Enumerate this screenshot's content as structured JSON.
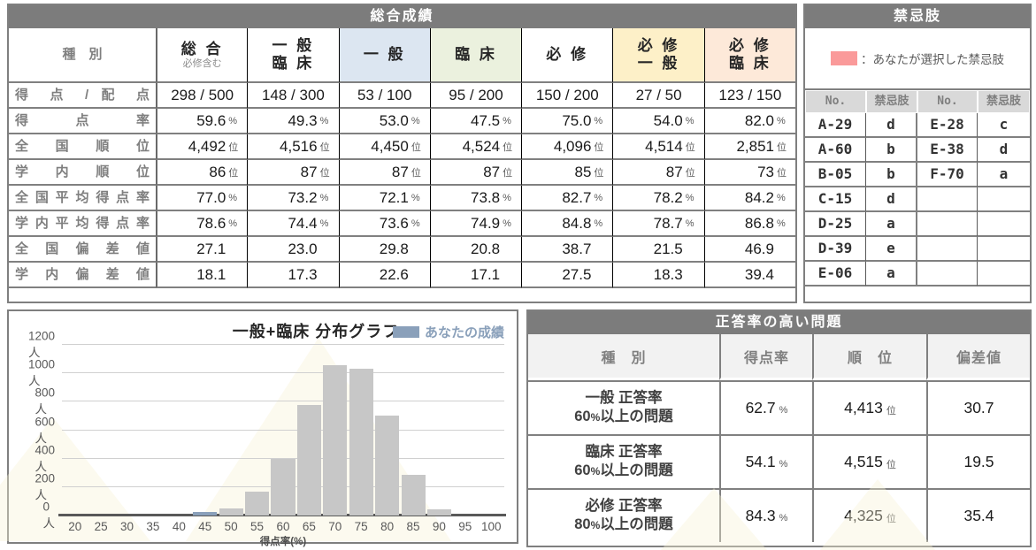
{
  "main_table": {
    "title": "総合成績",
    "corner_label": "種　別",
    "columns": [
      {
        "line1": "総 合",
        "sub": "必修含む",
        "bg": "#ffffff"
      },
      {
        "line1": "一 般",
        "line2": "臨 床",
        "bg": "#ffffff"
      },
      {
        "line1": "一 般",
        "bg": "#dce6f1"
      },
      {
        "line1": "臨 床",
        "bg": "#ebf1de"
      },
      {
        "line1": "必 修",
        "bg": "#ffffff"
      },
      {
        "line1": "必 修",
        "line2": "一 般",
        "bg": "#fdf0c8"
      },
      {
        "line1": "必 修",
        "line2": "臨 床",
        "bg": "#fde9d9"
      }
    ],
    "rows": [
      {
        "label": "得 点 / 配 点",
        "unit": "",
        "align": "center",
        "values": [
          "298 / 500",
          "148 / 300",
          "53 / 100",
          "95 / 200",
          "150 / 200",
          "27 / 50",
          "123 / 150"
        ]
      },
      {
        "label": "得 点 率",
        "unit": "%",
        "values": [
          "59.6",
          "49.3",
          "53.0",
          "47.5",
          "75.0",
          "54.0",
          "82.0"
        ]
      },
      {
        "label": "全 国 順 位",
        "unit": "位",
        "values": [
          "4,492",
          "4,516",
          "4,450",
          "4,524",
          "4,096",
          "4,514",
          "2,851"
        ]
      },
      {
        "label": "学 内 順 位",
        "unit": "位",
        "values": [
          "86",
          "87",
          "87",
          "87",
          "85",
          "87",
          "73"
        ]
      },
      {
        "label": "全国平均得点率",
        "unit": "%",
        "values": [
          "77.0",
          "73.2",
          "72.1",
          "73.8",
          "82.7",
          "78.2",
          "84.2"
        ]
      },
      {
        "label": "学内平均得点率",
        "unit": "%",
        "values": [
          "78.6",
          "74.4",
          "73.6",
          "74.9",
          "84.8",
          "78.7",
          "86.8"
        ]
      },
      {
        "label": "全 国 偏 差 値",
        "unit": "",
        "values": [
          "27.1",
          "23.0",
          "29.8",
          "20.8",
          "38.7",
          "21.5",
          "46.9"
        ]
      },
      {
        "label": "学 内 偏 差 値",
        "unit": "",
        "values": [
          "18.1",
          "17.3",
          "22.6",
          "17.1",
          "27.5",
          "18.3",
          "39.4"
        ]
      }
    ]
  },
  "kinshi_panel": {
    "title": "禁忌肢",
    "legend_label": "：あなたが選択した禁忌肢",
    "legend_color": "#fa9a9a",
    "col_headers": [
      "No.",
      "禁忌肢",
      "No.",
      "禁忌肢"
    ],
    "rows": [
      [
        "A-29",
        "d",
        "E-28",
        "c"
      ],
      [
        "A-60",
        "b",
        "E-38",
        "d"
      ],
      [
        "B-05",
        "b",
        "F-70",
        "a"
      ],
      [
        "C-15",
        "d",
        "",
        ""
      ],
      [
        "D-25",
        "a",
        "",
        ""
      ],
      [
        "D-39",
        "e",
        "",
        ""
      ],
      [
        "E-06",
        "a",
        "",
        ""
      ]
    ]
  },
  "chart_data": {
    "type": "bar",
    "title": "一般+臨床 分布グラフ",
    "legend_label": "あなたの成績",
    "legend_position": "top-right",
    "xlabel": "得点率(%)",
    "categories": [
      20,
      25,
      30,
      35,
      40,
      45,
      50,
      55,
      60,
      65,
      70,
      75,
      80,
      85,
      90,
      95,
      100
    ],
    "values": [
      0,
      0,
      0,
      0,
      0,
      25,
      50,
      170,
      400,
      780,
      1060,
      1030,
      705,
      285,
      45,
      0,
      0
    ],
    "highlight": {
      "x": 45,
      "value": 25,
      "meaning": "あなたの成績"
    },
    "ylim": [
      0,
      1200
    ],
    "ytick_step": 200,
    "ytick_suffix": "人",
    "grid": true,
    "bar_color": "#c7c7c7",
    "highlight_color": "#8aa0ba"
  },
  "seitou_table": {
    "title": "正答率の高い問題",
    "col_headers": [
      "種　別",
      "得点率",
      "順　位",
      "偏差値"
    ],
    "rows": [
      {
        "label_line1": "一般 正答率",
        "label_line2": "60%以上の問題",
        "rate": "62.7",
        "rate_unit": "%",
        "rank": "4,413",
        "rank_unit": "位",
        "deviation": "30.7"
      },
      {
        "label_line1": "臨床 正答率",
        "label_line2": "60%以上の問題",
        "rate": "54.1",
        "rate_unit": "%",
        "rank": "4,515",
        "rank_unit": "位",
        "deviation": "19.5"
      },
      {
        "label_line1": "必修 正答率",
        "label_line2": "80%以上の問題",
        "rate": "84.3",
        "rate_unit": "%",
        "rank": "4,325",
        "rank_unit": "位",
        "deviation": "35.4"
      }
    ]
  },
  "colors": {
    "titlebar": "#7c7c7c",
    "grid_border": "#808080",
    "header_blue": "#dce6f1",
    "header_green": "#ebf1de",
    "header_yellow": "#fdf0c8",
    "header_orange": "#fde9d9",
    "kinshi_header_bg": "#d9d9d9",
    "seitou_header_bg": "#f2f2f2"
  }
}
